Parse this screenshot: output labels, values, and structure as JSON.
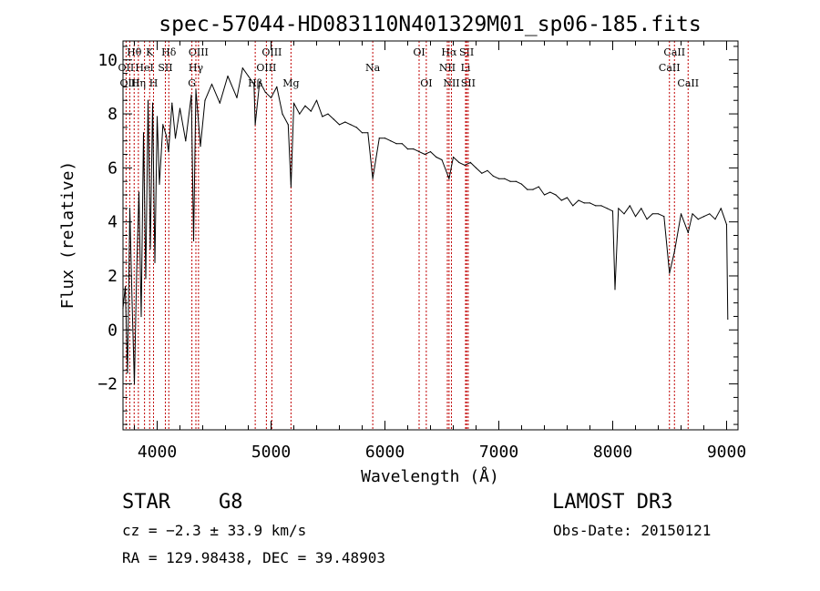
{
  "chart_data": {
    "type": "line",
    "title": "spec-57044-HD083110N401329M01_sp06-185.fits",
    "xlabel": "Wavelength (Å)",
    "ylabel": "Flux (relative)",
    "xlim": [
      3700,
      9100
    ],
    "ylim": [
      -3.7,
      10.7
    ],
    "xticks": [
      4000,
      5000,
      6000,
      7000,
      8000,
      9000
    ],
    "yticks": [
      -2,
      0,
      2,
      4,
      6,
      8,
      10
    ],
    "grid": false,
    "series": [
      {
        "name": "flux",
        "x": [
          3700,
          3720,
          3740,
          3760,
          3780,
          3800,
          3820,
          3840,
          3860,
          3880,
          3900,
          3920,
          3940,
          3960,
          3980,
          4000,
          4020,
          4050,
          4080,
          4100,
          4130,
          4160,
          4200,
          4250,
          4300,
          4320,
          4340,
          4380,
          4420,
          4480,
          4550,
          4620,
          4700,
          4750,
          4800,
          4850,
          4861,
          4900,
          4950,
          5000,
          5050,
          5100,
          5150,
          5175,
          5200,
          5250,
          5300,
          5350,
          5400,
          5450,
          5500,
          5550,
          5600,
          5650,
          5700,
          5750,
          5800,
          5850,
          5893,
          5950,
          6000,
          6050,
          6100,
          6150,
          6200,
          6250,
          6300,
          6350,
          6400,
          6450,
          6500,
          6563,
          6600,
          6650,
          6700,
          6750,
          6800,
          6850,
          6900,
          6950,
          7000,
          7050,
          7100,
          7150,
          7200,
          7250,
          7300,
          7350,
          7400,
          7450,
          7500,
          7550,
          7600,
          7650,
          7700,
          7750,
          7800,
          7850,
          7900,
          7950,
          8000,
          8020,
          8050,
          8100,
          8150,
          8200,
          8250,
          8300,
          8350,
          8400,
          8450,
          8498,
          8542,
          8600,
          8662,
          8700,
          8750,
          8800,
          8850,
          8900,
          8950,
          9000,
          9010
        ],
        "values": [
          0.8,
          1.6,
          -1.6,
          4.5,
          1.0,
          -2.0,
          2.2,
          5.1,
          0.5,
          7.3,
          1.9,
          8.5,
          3.0,
          8.4,
          2.5,
          7.9,
          5.4,
          7.6,
          7.2,
          6.6,
          8.4,
          7.1,
          8.2,
          7.0,
          8.7,
          3.3,
          8.9,
          6.8,
          8.5,
          9.1,
          8.4,
          9.4,
          8.6,
          9.7,
          9.4,
          9.1,
          7.6,
          9.2,
          8.8,
          8.6,
          9.0,
          8.0,
          7.6,
          5.3,
          8.4,
          8.0,
          8.3,
          8.1,
          8.5,
          7.9,
          8.0,
          7.8,
          7.6,
          7.7,
          7.6,
          7.5,
          7.3,
          7.3,
          5.6,
          7.1,
          7.1,
          7.0,
          6.9,
          6.9,
          6.7,
          6.7,
          6.6,
          6.5,
          6.6,
          6.4,
          6.3,
          5.6,
          6.4,
          6.2,
          6.1,
          6.2,
          6.0,
          5.8,
          5.9,
          5.7,
          5.6,
          5.6,
          5.5,
          5.5,
          5.4,
          5.2,
          5.2,
          5.3,
          5.0,
          5.1,
          5.0,
          4.8,
          4.9,
          4.6,
          4.8,
          4.7,
          4.7,
          4.6,
          4.6,
          4.5,
          4.4,
          1.5,
          4.5,
          4.3,
          4.6,
          4.2,
          4.5,
          4.1,
          4.3,
          4.3,
          4.2,
          2.1,
          2.9,
          4.3,
          3.6,
          4.3,
          4.1,
          4.2,
          4.3,
          4.1,
          4.5,
          3.9,
          0.4
        ]
      }
    ],
    "lines": [
      {
        "label": "Hθ",
        "wavelength": 3798,
        "row": 0
      },
      {
        "label": "OII",
        "wavelength": 3727,
        "row": 1
      },
      {
        "label": "OIII",
        "wavelength": 3760,
        "row": 2
      },
      {
        "label": "K",
        "wavelength": 3934,
        "row": 0
      },
      {
        "label": "HeI",
        "wavelength": 3889,
        "row": 1
      },
      {
        "label": "Hη",
        "wavelength": 3835,
        "row": 2
      },
      {
        "label": "H",
        "wavelength": 3968,
        "row": 2
      },
      {
        "label": "SII",
        "wavelength": 4072,
        "row": 1
      },
      {
        "label": "Hδ",
        "wavelength": 4102,
        "row": 0
      },
      {
        "label": "OIII",
        "wavelength": 4363,
        "row": 0
      },
      {
        "label": "Hγ",
        "wavelength": 4340,
        "row": 1
      },
      {
        "label": "G",
        "wavelength": 4305,
        "row": 2
      },
      {
        "label": "OIII",
        "wavelength": 5007,
        "row": 0
      },
      {
        "label": "OIII",
        "wavelength": 4959,
        "row": 1
      },
      {
        "label": "Hβ",
        "wavelength": 4861,
        "row": 2
      },
      {
        "label": "Mg",
        "wavelength": 5175,
        "row": 2
      },
      {
        "label": "Na",
        "wavelength": 5893,
        "row": 1
      },
      {
        "label": "OI",
        "wavelength": 6300,
        "row": 0
      },
      {
        "label": "OI",
        "wavelength": 6363,
        "row": 2
      },
      {
        "label": "Hα",
        "wavelength": 6563,
        "row": 0
      },
      {
        "label": "NII",
        "wavelength": 6548,
        "row": 1
      },
      {
        "label": "NII",
        "wavelength": 6584,
        "row": 2
      },
      {
        "label": "SII",
        "wavelength": 6717,
        "row": 0
      },
      {
        "label": "Li",
        "wavelength": 6708,
        "row": 1
      },
      {
        "label": "SII",
        "wavelength": 6731,
        "row": 2
      },
      {
        "label": "CaII",
        "wavelength": 8542,
        "row": 0
      },
      {
        "label": "CaII",
        "wavelength": 8498,
        "row": 1
      },
      {
        "label": "CaII",
        "wavelength": 8662,
        "row": 2
      }
    ]
  },
  "info": {
    "class": "STAR",
    "subclass": "G8",
    "survey": "LAMOST DR3",
    "cz": "cz = −2.3 ± 33.9 km/s",
    "obs_date": "Obs-Date: 20150121",
    "radec": "RA = 129.98438, DEC =  39.48903"
  }
}
